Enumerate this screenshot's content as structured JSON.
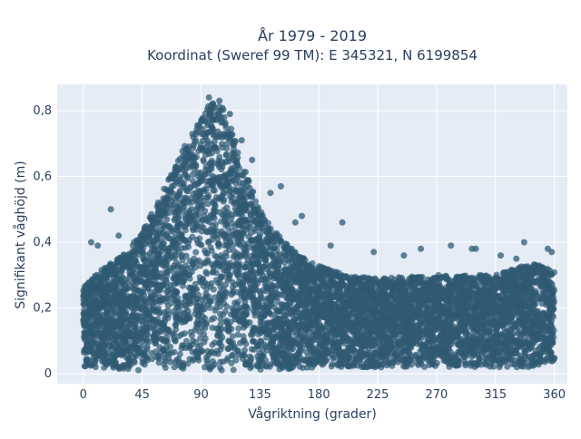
{
  "chart_data": {
    "type": "scatter",
    "title_lines": [
      "År 1979 - 2019",
      "Koordinat (Sweref 99 TM): E 345321, N 6199854"
    ],
    "xlabel": "Vågriktning (grader)",
    "ylabel": "Signifikant våghöjd (m)",
    "xlim": [
      -20,
      370
    ],
    "ylim": [
      -0.03,
      0.88
    ],
    "x_ticks": [
      0,
      45,
      90,
      135,
      180,
      225,
      270,
      315,
      360
    ],
    "y_ticks": [
      0,
      0.2,
      0.4,
      0.6,
      0.8
    ],
    "y_tick_labels": [
      "0",
      "0,2",
      "0,4",
      "0,6",
      "0,8"
    ],
    "grid": true,
    "legend": "none",
    "colors": {
      "marker": "#2f5a72",
      "plot_bg": "#e5ecf6",
      "grid": "#ffffff"
    },
    "series": [
      {
        "x_range": [
          0,
          360
        ],
        "approx_point_count": "dense (tens of thousands)",
        "upper_envelope": [
          [
            0,
            0.27
          ],
          [
            15,
            0.32
          ],
          [
            30,
            0.36
          ],
          [
            45,
            0.43
          ],
          [
            60,
            0.55
          ],
          [
            75,
            0.68
          ],
          [
            90,
            0.78
          ],
          [
            100,
            0.84
          ],
          [
            110,
            0.79
          ],
          [
            120,
            0.66
          ],
          [
            135,
            0.5
          ],
          [
            150,
            0.42
          ],
          [
            165,
            0.36
          ],
          [
            180,
            0.33
          ],
          [
            200,
            0.3
          ],
          [
            225,
            0.29
          ],
          [
            270,
            0.3
          ],
          [
            315,
            0.3
          ],
          [
            345,
            0.34
          ],
          [
            360,
            0.31
          ]
        ],
        "lower_envelope": [
          [
            0,
            0.02
          ],
          [
            45,
            0.01
          ],
          [
            90,
            0.01
          ],
          [
            135,
            0.01
          ],
          [
            180,
            0.02
          ],
          [
            225,
            0.02
          ],
          [
            270,
            0.02
          ],
          [
            315,
            0.02
          ],
          [
            360,
            0.02
          ]
        ],
        "sample_points": [
          [
            96,
            0.84
          ],
          [
            99,
            0.82
          ],
          [
            104,
            0.83
          ],
          [
            112,
            0.79
          ],
          [
            84,
            0.72
          ],
          [
            78,
            0.68
          ],
          [
            72,
            0.62
          ],
          [
            121,
            0.71
          ],
          [
            129,
            0.65
          ],
          [
            143,
            0.55
          ],
          [
            151,
            0.57
          ],
          [
            162,
            0.46
          ],
          [
            167,
            0.48
          ],
          [
            198,
            0.46
          ],
          [
            21,
            0.5
          ],
          [
            6,
            0.4
          ],
          [
            11,
            0.39
          ],
          [
            27,
            0.42
          ],
          [
            189,
            0.39
          ],
          [
            222,
            0.37
          ],
          [
            245,
            0.36
          ],
          [
            258,
            0.38
          ],
          [
            281,
            0.39
          ],
          [
            297,
            0.38
          ],
          [
            319,
            0.36
          ],
          [
            337,
            0.4
          ],
          [
            355,
            0.38
          ],
          [
            358,
            0.37
          ],
          [
            300,
            0.38
          ],
          [
            331,
            0.35
          ]
        ]
      }
    ]
  }
}
